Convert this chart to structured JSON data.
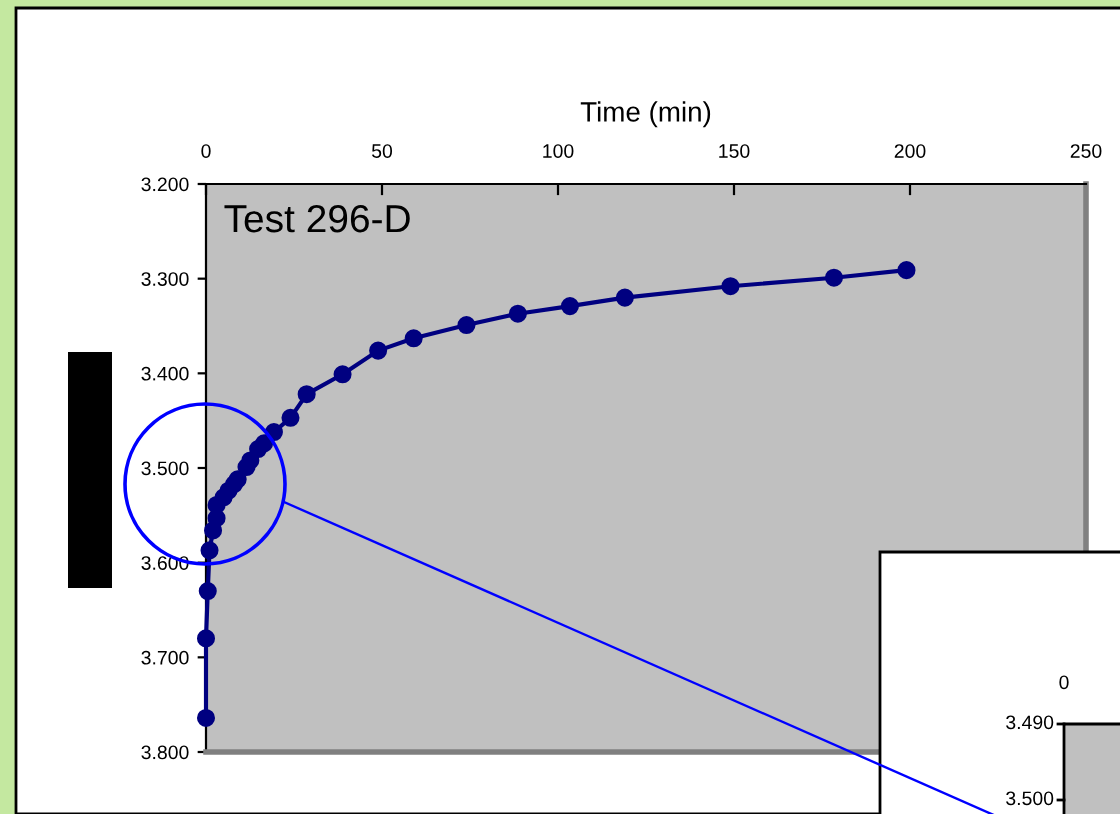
{
  "chart_data": [
    {
      "type": "line",
      "xlabel": "Time (min)",
      "annotations": [
        "Test 296-D",
        "0",
        "3.490",
        "3.500"
      ],
      "marker": "circle",
      "line_style": "solid",
      "grid": false,
      "legend": false,
      "x": [
        0,
        0,
        0.5,
        1,
        2,
        3,
        3,
        5,
        6.4,
        8,
        9,
        11.5,
        12.6,
        14.8,
        16.5,
        19.3,
        24,
        28.6,
        38.8,
        48.9,
        59,
        74,
        88.6,
        103.4,
        119,
        149,
        178.4,
        199
      ],
      "series": [
        {
          "color": "#000080",
          "values": [
            3.764,
            3.68,
            3.63,
            3.587,
            3.566,
            3.553,
            3.539,
            3.531,
            3.524,
            3.517,
            3.512,
            3.499,
            3.492,
            3.48,
            3.474,
            3.462,
            3.447,
            3.422,
            3.401,
            3.376,
            3.363,
            3.349,
            3.337,
            3.329,
            3.32,
            3.308,
            3.299,
            3.291
          ]
        }
      ],
      "xlim": [
        0,
        250
      ],
      "xticks": [
        0,
        50,
        100,
        150,
        200,
        250
      ],
      "ylim": [
        3.8,
        3.2
      ],
      "yticks": [
        {
          "value": 3.2,
          "label": "3.200"
        },
        {
          "value": 3.3,
          "label": "3.300"
        },
        {
          "value": 3.4,
          "label": "3.400"
        },
        {
          "value": 3.5,
          "label": "3.500"
        },
        {
          "value": 3.6,
          "label": "3.600"
        },
        {
          "value": 3.7,
          "label": "3.700"
        },
        {
          "value": 3.8,
          "label": "3.800"
        }
      ]
    }
  ]
}
